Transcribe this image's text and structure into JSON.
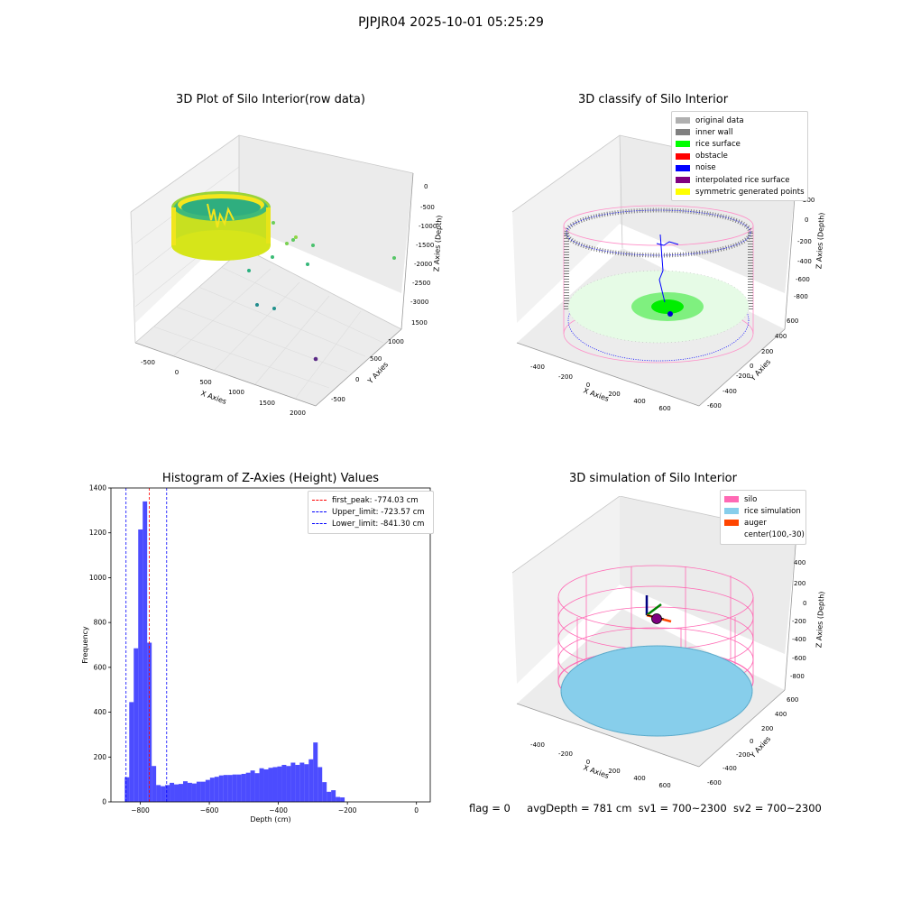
{
  "suptitle": "PJPJR04 2025-10-01 05:25:29",
  "panels": {
    "p1": {
      "title": "3D Plot of Silo Interior(row data)",
      "xlabel": "X Axies",
      "ylabel": "Y Axies",
      "zlabel": "Z Axies (Depth)",
      "xticks": [
        "-500",
        "0",
        "500",
        "1000",
        "1500",
        "2000"
      ],
      "yticks": [
        "1500",
        "1000",
        "500",
        "0",
        "-500"
      ],
      "zticks": [
        "0",
        "-500",
        "-1000",
        "-1500",
        "-2000",
        "-2500",
        "-3000"
      ]
    },
    "p2": {
      "title": "3D classify of Silo Interior",
      "xlabel": "X Axies",
      "ylabel": "Y Axies",
      "zlabel": "Z Axies (Depth)",
      "xticks": [
        "-400",
        "-200",
        "0",
        "200",
        "400",
        "600"
      ],
      "yticks": [
        "600",
        "400",
        "200",
        "0",
        "-200",
        "-400",
        "-600"
      ],
      "zticks": [
        "200",
        "0",
        "-200",
        "-400",
        "-600",
        "-800"
      ],
      "legend": [
        {
          "label": "original data",
          "color": "#b0b0b0"
        },
        {
          "label": "inner wall",
          "color": "#808080"
        },
        {
          "label": "rice surface",
          "color": "#00ff00"
        },
        {
          "label": "obstacle",
          "color": "#ff0000"
        },
        {
          "label": "noise",
          "color": "#0000ff"
        },
        {
          "label": "interpolated rice surface",
          "color": "#800080"
        },
        {
          "label": "symmetric generated points",
          "color": "#ffff00"
        }
      ]
    },
    "p3": {
      "title": "Histogram of Z-Axies (Height) Values",
      "xlabel": "Depth (cm)",
      "ylabel": "Frequency",
      "legend": [
        {
          "label": "first_peak: -774.03 cm",
          "color": "#ff0000"
        },
        {
          "label": "Upper_limit: -723.57 cm",
          "color": "#0000ff"
        },
        {
          "label": "Lower_limit: -841.30 cm",
          "color": "#0000ff"
        }
      ]
    },
    "p4": {
      "title": "3D simulation of Silo Interior",
      "xlabel": "X Axies",
      "ylabel": "Y Axies",
      "zlabel": "Z Axies (Depth)",
      "xticks": [
        "-400",
        "-200",
        "0",
        "200",
        "400",
        "600"
      ],
      "yticks": [
        "600",
        "400",
        "200",
        "0",
        "-200",
        "-400",
        "-600"
      ],
      "zticks": [
        "400",
        "200",
        "0",
        "-200",
        "-400",
        "-600",
        "-800"
      ],
      "legend": [
        {
          "label": "silo",
          "color": "#ff69b4"
        },
        {
          "label": "rice simulation",
          "color": "#87ceeb"
        },
        {
          "label": "auger",
          "color": "#ff4500"
        },
        {
          "label": "center(100,-30)",
          "color": ""
        }
      ]
    }
  },
  "footer": {
    "flag": "flag = 0",
    "avg": "avgDepth = 781 cm",
    "sv1": "sv1 = 700~2300",
    "sv2": "sv2 = 700~2300"
  },
  "chart_data": [
    {
      "type": "scatter",
      "title": "3D Plot of Silo Interior(row data)",
      "xlabel": "X Axies",
      "ylabel": "Y Axies",
      "zlabel": "Z Axies (Depth)",
      "xlim": [
        -700,
        2000
      ],
      "ylim": [
        -700,
        1600
      ],
      "zlim": [
        -3200,
        100
      ],
      "scale": "viridis"
    },
    {
      "type": "scatter",
      "title": "3D classify of Silo Interior",
      "xlabel": "X Axies",
      "ylabel": "Y Axies",
      "zlabel": "Z Axies (Depth)",
      "xlim": [
        -500,
        700
      ],
      "ylim": [
        -700,
        700
      ],
      "zlim": [
        -950,
        300
      ],
      "series": [
        {
          "name": "original data"
        },
        {
          "name": "inner wall"
        },
        {
          "name": "rice surface"
        },
        {
          "name": "obstacle"
        },
        {
          "name": "noise"
        },
        {
          "name": "interpolated rice surface"
        },
        {
          "name": "symmetric generated points"
        }
      ]
    },
    {
      "type": "bar",
      "title": "Histogram of Z-Axies (Height) Values",
      "xlabel": "Depth (cm)",
      "ylabel": "Frequency",
      "xlim": [
        -885,
        40
      ],
      "ylim": [
        0,
        1400
      ],
      "xticks": [
        -800,
        -600,
        -400,
        -200,
        0
      ],
      "yticks": [
        0,
        200,
        400,
        600,
        800,
        1000,
        1200,
        1400
      ],
      "bin_start": -845,
      "bin_width": 13,
      "values": [
        110,
        445,
        685,
        1215,
        1340,
        710,
        160,
        75,
        70,
        75,
        85,
        78,
        80,
        92,
        85,
        82,
        90,
        90,
        98,
        108,
        112,
        118,
        120,
        120,
        122,
        122,
        125,
        130,
        140,
        128,
        150,
        145,
        152,
        155,
        158,
        165,
        160,
        175,
        165,
        175,
        168,
        190,
        265,
        155,
        88,
        45,
        52,
        22,
        20
      ],
      "color": "#0000ff",
      "vlines": [
        {
          "name": "first_peak: -774.03 cm",
          "x": -774.03,
          "color": "#ff0000"
        },
        {
          "name": "Upper_limit: -723.57 cm",
          "x": -723.57,
          "color": "#0000ff"
        },
        {
          "name": "Lower_limit: -841.30 cm",
          "x": -841.3,
          "color": "#0000ff"
        }
      ]
    },
    {
      "type": "scatter",
      "title": "3D simulation of Silo Interior",
      "xlabel": "X Axies",
      "ylabel": "Y Axies",
      "zlabel": "Z Axies (Depth)",
      "xlim": [
        -500,
        700
      ],
      "ylim": [
        -700,
        700
      ],
      "zlim": [
        -950,
        450
      ],
      "series": [
        {
          "name": "silo"
        },
        {
          "name": "rice simulation"
        },
        {
          "name": "auger"
        }
      ]
    }
  ]
}
